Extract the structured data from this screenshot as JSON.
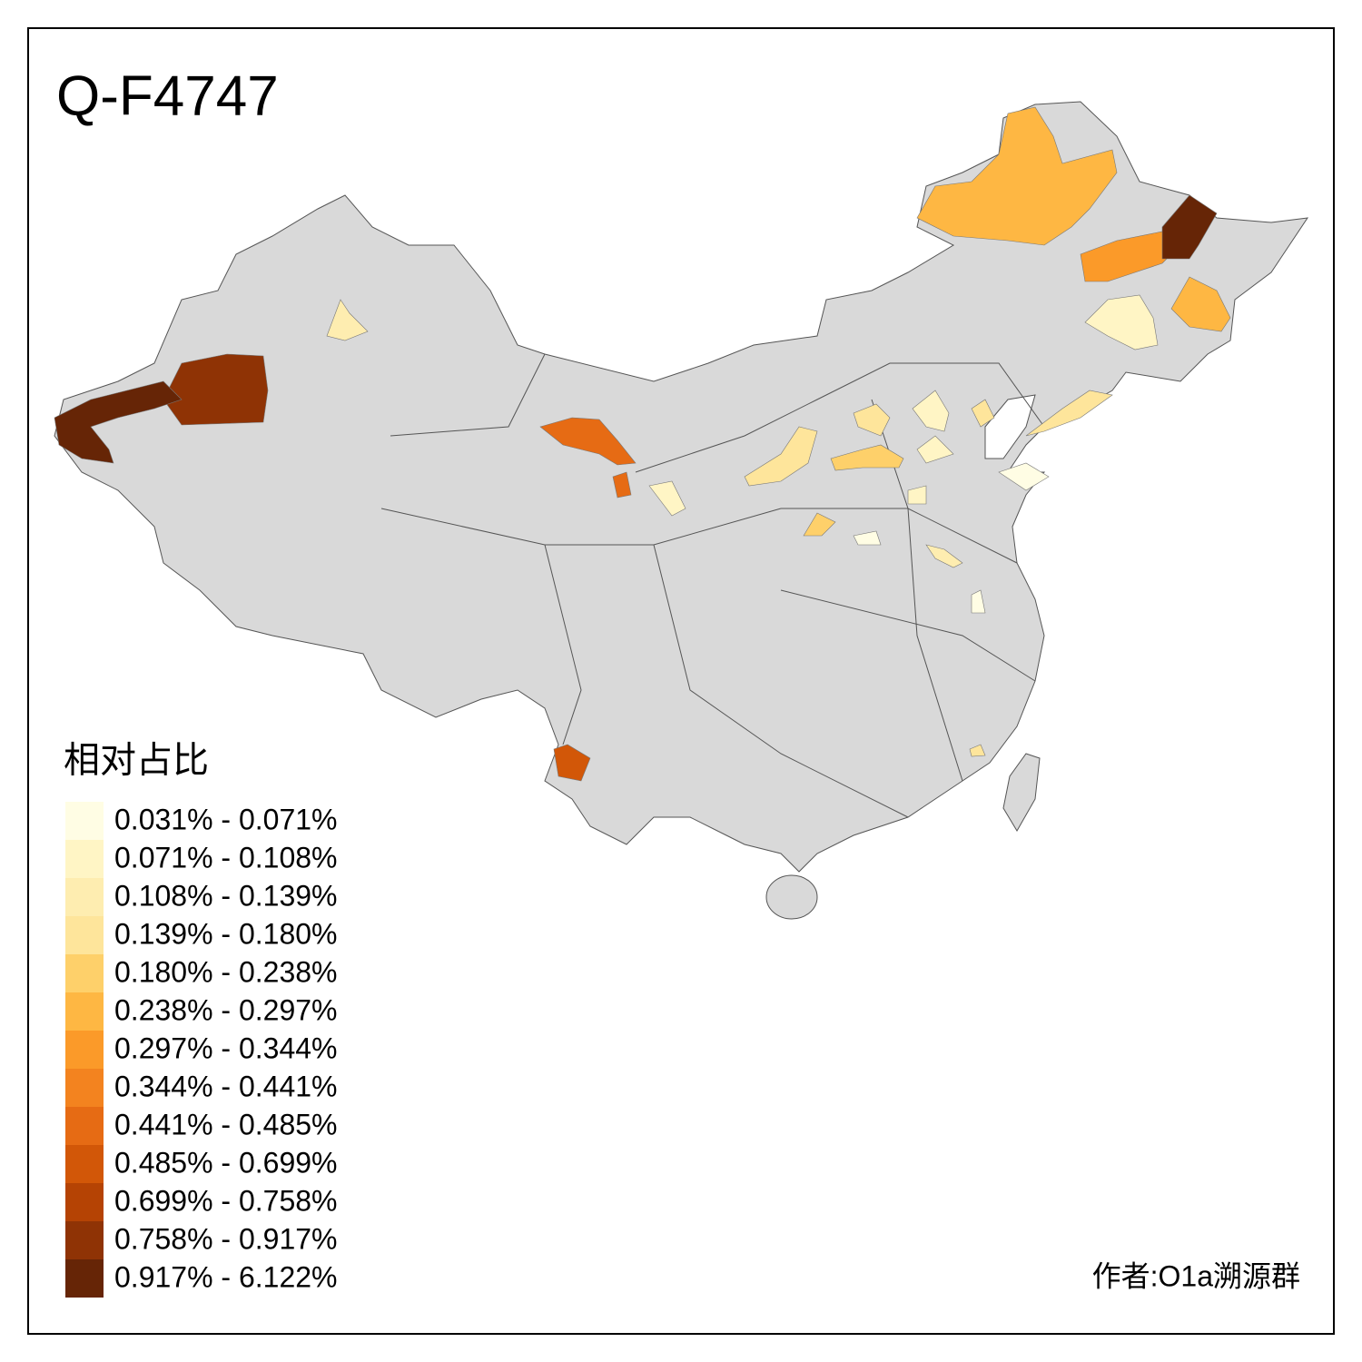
{
  "title": "Q-F4747",
  "legend": {
    "title": "相对占比",
    "items": [
      {
        "label": "0.031% - 0.071%",
        "color": "#fffde4"
      },
      {
        "label": "0.071% - 0.108%",
        "color": "#fff5c5"
      },
      {
        "label": "0.108% - 0.139%",
        "color": "#feedb0"
      },
      {
        "label": "0.139% - 0.180%",
        "color": "#fee59b"
      },
      {
        "label": "0.180% - 0.238%",
        "color": "#fed06a"
      },
      {
        "label": "0.238% - 0.297%",
        "color": "#feb743"
      },
      {
        "label": "0.297% - 0.344%",
        "color": "#fb9a29"
      },
      {
        "label": "0.344% - 0.441%",
        "color": "#f3831f"
      },
      {
        "label": "0.441% - 0.485%",
        "color": "#e66b14"
      },
      {
        "label": "0.485% - 0.699%",
        "color": "#d25708"
      },
      {
        "label": "0.699% - 0.758%",
        "color": "#b54304"
      },
      {
        "label": "0.758% - 0.917%",
        "color": "#8f3305"
      },
      {
        "label": "0.917% - 6.122%",
        "color": "#662506"
      }
    ]
  },
  "author": "作者:O1a溯源群"
}
